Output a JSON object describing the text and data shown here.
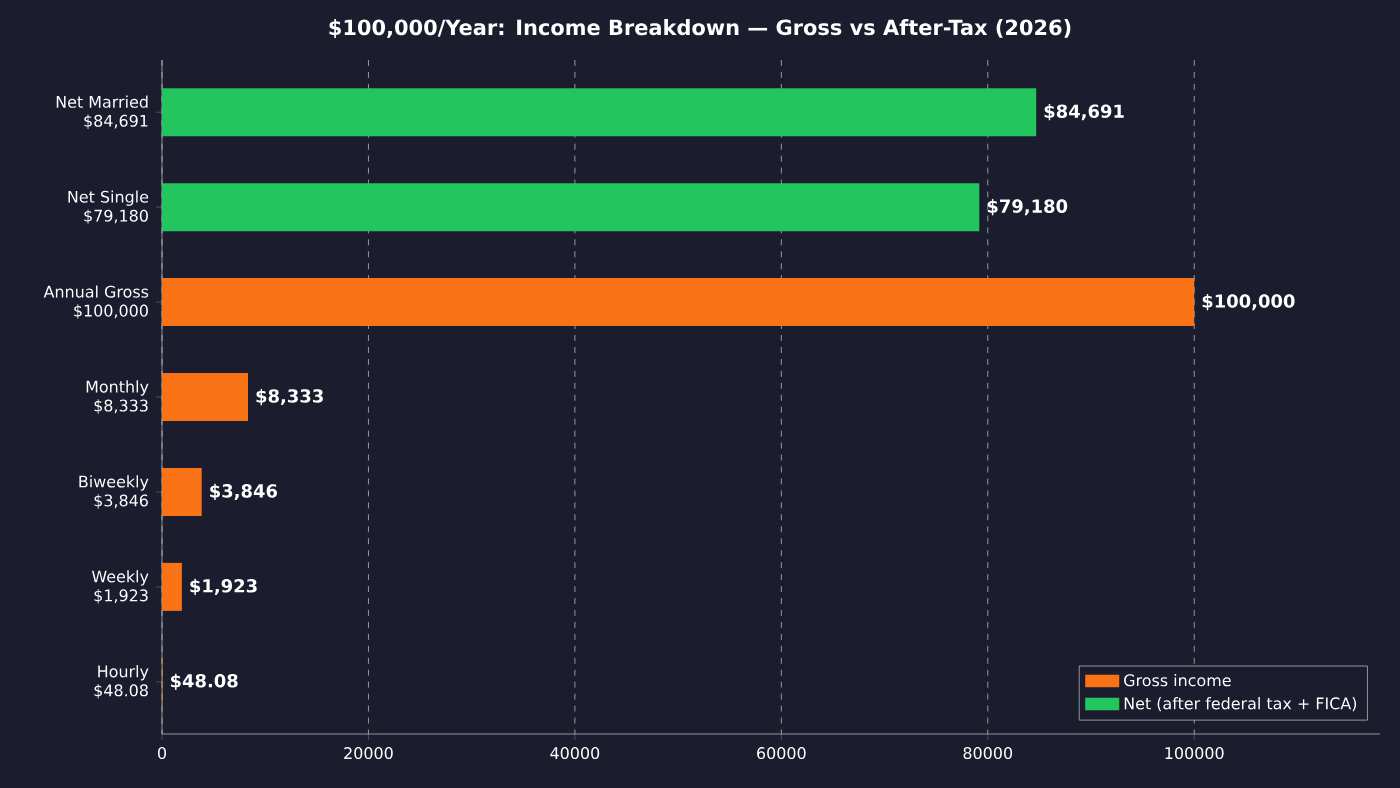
{
  "chart_data": {
    "type": "bar",
    "orientation": "horizontal",
    "title": "$100,000/Year: Income Breakdown — Gross vs After-Tax (2026)",
    "categories": [
      "Net Married\n$84,691",
      "Net Single\n$79,180",
      "Annual Gross\n$100,000",
      "Monthly\n$8,333",
      "Biweekly\n$3,846",
      "Weekly\n$1,923",
      "Hourly\n$48.08"
    ],
    "series": [
      {
        "name": "Gross income",
        "color": "#f97316",
        "values": [
          null,
          null,
          100000,
          8333,
          3846,
          1923,
          48.08
        ],
        "value_labels": [
          null,
          null,
          "$100,000",
          "$8,333",
          "$3,846",
          "$1,923",
          "$48.08"
        ]
      },
      {
        "name": "Net (after federal tax + FICA)",
        "color": "#22c55e",
        "values": [
          84691,
          79180,
          null,
          null,
          null,
          null,
          null
        ],
        "value_labels": [
          "$84,691",
          "$79,180",
          null,
          null,
          null,
          null,
          null
        ]
      }
    ],
    "xlim": [
      0,
      118000
    ],
    "xticks": [
      0,
      20000,
      40000,
      60000,
      80000,
      100000
    ],
    "grid": "x",
    "legend": "bottom right"
  }
}
